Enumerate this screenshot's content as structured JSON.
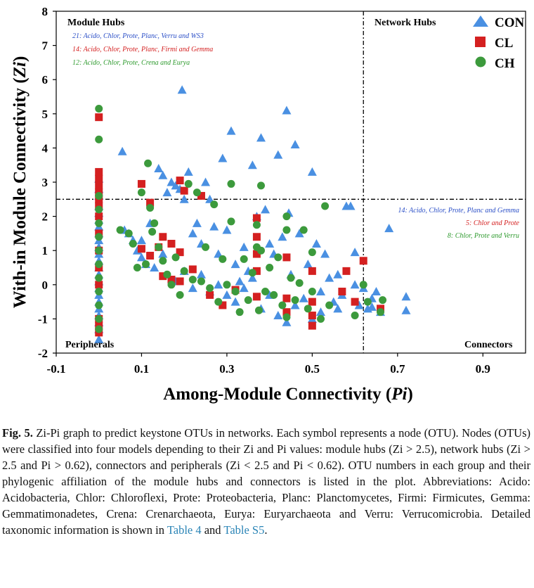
{
  "chart_data": {
    "type": "scatter",
    "xlabel_main": "Among-Module Connectivity (",
    "xlabel_var": "Pi",
    "xlabel_end": ")",
    "ylabel_main": "With-in Module Connectivity (",
    "ylabel_var": "Zi",
    "ylabel_end": ")",
    "xlim": [
      -0.1,
      1.0
    ],
    "ylim": [
      -2,
      8
    ],
    "xticks": [
      "-0.1",
      "0.1",
      "0.3",
      "0.5",
      "0.7",
      "0.9"
    ],
    "yticks": [
      "-2",
      "-1",
      "0",
      "1",
      "2",
      "3",
      "4",
      "5",
      "6",
      "7",
      "8"
    ],
    "thresholds": {
      "zi": 2.5,
      "pi": 0.62
    },
    "quadrants": {
      "module_hubs": "Module Hubs",
      "network_hubs": "Network Hubs",
      "peripherals": "Peripherals",
      "connectors": "Connectors"
    },
    "notes_module_hubs": [
      {
        "text": "21: Acido, Chlor, Prote, Planc, Verru and WS3",
        "color": "#2b4fc7"
      },
      {
        "text": "14: Acido, Chlor, Prote, Planc, Firmi and Gemma",
        "color": "#d42020"
      },
      {
        "text": "12: Acido, Chlor, Prote, Crena and Eurya",
        "color": "#2e9a2e"
      }
    ],
    "notes_connectors": [
      {
        "text": "14: Acido, Chlor, Prote, Planc and Gemma",
        "color": "#2b4fc7"
      },
      {
        "text": "5: Chlor and Prote",
        "color": "#d42020"
      },
      {
        "text": "8: Chlor, Prote and Verru",
        "color": "#2e9a2e"
      }
    ],
    "series": [
      {
        "name": "CON",
        "marker": "triangle",
        "color": "#4a90e2",
        "points": [
          [
            0,
            -1.6
          ],
          [
            0,
            -1.3
          ],
          [
            0,
            -1.1
          ],
          [
            0,
            -0.9
          ],
          [
            0,
            -0.7
          ],
          [
            0,
            -0.5
          ],
          [
            0,
            -0.3
          ],
          [
            0,
            -0.1
          ],
          [
            0,
            0.1
          ],
          [
            0,
            0.3
          ],
          [
            0,
            0.5
          ],
          [
            0,
            0.7
          ],
          [
            0,
            0.9
          ],
          [
            0,
            1.1
          ],
          [
            0,
            1.3
          ],
          [
            0,
            1.5
          ],
          [
            0,
            1.7
          ],
          [
            0,
            1.9
          ],
          [
            0,
            2.1
          ],
          [
            0,
            2.3
          ],
          [
            0,
            2.6
          ],
          [
            0,
            2.8
          ],
          [
            0,
            3.1
          ],
          [
            0.055,
            3.9
          ],
          [
            0.06,
            1.6
          ],
          [
            0.07,
            1.5
          ],
          [
            0.08,
            1.3
          ],
          [
            0.09,
            1.0
          ],
          [
            0.1,
            0.8
          ],
          [
            0.11,
            0.6
          ],
          [
            0.13,
            0.5
          ],
          [
            0.14,
            3.4
          ],
          [
            0.15,
            3.2
          ],
          [
            0.16,
            2.7
          ],
          [
            0.17,
            3.0
          ],
          [
            0.18,
            2.9
          ],
          [
            0.19,
            2.8
          ],
          [
            0.195,
            5.7
          ],
          [
            0.2,
            2.5
          ],
          [
            0.21,
            3.3
          ],
          [
            0.22,
            1.5
          ],
          [
            0.23,
            1.8
          ],
          [
            0.24,
            1.2
          ],
          [
            0.25,
            3.0
          ],
          [
            0.26,
            2.5
          ],
          [
            0.27,
            1.7
          ],
          [
            0.28,
            0.9
          ],
          [
            0.29,
            3.7
          ],
          [
            0.3,
            1.6
          ],
          [
            0.31,
            4.5
          ],
          [
            0.32,
            0.6
          ],
          [
            0.33,
            0.1
          ],
          [
            0.34,
            1.1
          ],
          [
            0.35,
            0.4
          ],
          [
            0.36,
            3.5
          ],
          [
            0.37,
            2.0
          ],
          [
            0.38,
            4.3
          ],
          [
            0.39,
            2.2
          ],
          [
            0.4,
            1.2
          ],
          [
            0.41,
            0.9
          ],
          [
            0.42,
            3.8
          ],
          [
            0.43,
            1.4
          ],
          [
            0.44,
            5.1
          ],
          [
            0.445,
            2.1
          ],
          [
            0.45,
            0.3
          ],
          [
            0.46,
            4.1
          ],
          [
            0.47,
            1.5
          ],
          [
            0.48,
            -0.4
          ],
          [
            0.49,
            0.6
          ],
          [
            0.5,
            3.3
          ],
          [
            0.51,
            1.2
          ],
          [
            0.52,
            -0.2
          ],
          [
            0.53,
            0.9
          ],
          [
            0.54,
            0.2
          ],
          [
            0.55,
            -0.5
          ],
          [
            0.56,
            0.3
          ],
          [
            0.57,
            -0.3
          ],
          [
            0.58,
            2.3
          ],
          [
            0.59,
            2.3
          ],
          [
            0.6,
            0.0
          ],
          [
            0.61,
            -0.6
          ],
          [
            0.62,
            -0.1
          ],
          [
            0.63,
            -0.7
          ],
          [
            0.64,
            -0.4
          ],
          [
            0.65,
            -0.2
          ],
          [
            0.66,
            -0.8
          ],
          [
            0.68,
            1.65
          ],
          [
            0.72,
            -0.35
          ],
          [
            0.72,
            -0.75
          ],
          [
            0.1,
            1.3
          ],
          [
            0.12,
            1.8
          ],
          [
            0.15,
            0.9
          ],
          [
            0.18,
            0.1
          ],
          [
            0.2,
            0.4
          ],
          [
            0.22,
            -0.1
          ],
          [
            0.24,
            0.3
          ],
          [
            0.26,
            -0.2
          ],
          [
            0.28,
            0.0
          ],
          [
            0.3,
            -0.3
          ],
          [
            0.32,
            -0.5
          ],
          [
            0.34,
            -0.1
          ],
          [
            0.36,
            0.2
          ],
          [
            0.38,
            -0.7
          ],
          [
            0.4,
            -0.3
          ],
          [
            0.42,
            -0.9
          ],
          [
            0.44,
            -1.1
          ],
          [
            0.46,
            -0.6
          ],
          [
            0.5,
            -1.0
          ],
          [
            0.52,
            -0.8
          ],
          [
            0.56,
            -0.7
          ],
          [
            0.6,
            0.95
          ],
          [
            0.64,
            -0.65
          ]
        ]
      },
      {
        "name": "CL",
        "marker": "square",
        "color": "#d42020",
        "points": [
          [
            0,
            -1.4
          ],
          [
            0,
            -1.2
          ],
          [
            0,
            -1.0
          ],
          [
            0,
            0.0
          ],
          [
            0,
            0.5
          ],
          [
            0,
            1.0
          ],
          [
            0,
            1.5
          ],
          [
            0,
            2.0
          ],
          [
            0,
            2.3
          ],
          [
            0,
            2.5
          ],
          [
            0,
            2.7
          ],
          [
            0,
            2.9
          ],
          [
            0,
            3.1
          ],
          [
            0,
            3.3
          ],
          [
            0,
            4.9
          ],
          [
            0.1,
            1.05
          ],
          [
            0.1,
            2.95
          ],
          [
            0.12,
            2.4
          ],
          [
            0.12,
            0.85
          ],
          [
            0.14,
            1.1
          ],
          [
            0.15,
            1.4
          ],
          [
            0.15,
            0.25
          ],
          [
            0.17,
            1.2
          ],
          [
            0.17,
            0.15
          ],
          [
            0.19,
            0.95
          ],
          [
            0.19,
            0.1
          ],
          [
            0.19,
            3.05
          ],
          [
            0.2,
            2.75
          ],
          [
            0.22,
            0.45
          ],
          [
            0.24,
            2.6
          ],
          [
            0.26,
            -0.3
          ],
          [
            0.29,
            -0.6
          ],
          [
            0.32,
            -0.15
          ],
          [
            0.37,
            1.95
          ],
          [
            0.37,
            1.4
          ],
          [
            0.37,
            0.9
          ],
          [
            0.37,
            0.4
          ],
          [
            0.37,
            -0.35
          ],
          [
            0.44,
            0.8
          ],
          [
            0.44,
            -0.4
          ],
          [
            0.44,
            -0.8
          ],
          [
            0.5,
            0.4
          ],
          [
            0.5,
            -0.5
          ],
          [
            0.5,
            -0.9
          ],
          [
            0.5,
            -1.2
          ],
          [
            0.57,
            -0.2
          ],
          [
            0.58,
            0.4
          ],
          [
            0.6,
            -0.5
          ],
          [
            0.62,
            0.7
          ],
          [
            0.66,
            -0.7
          ]
        ]
      },
      {
        "name": "CH",
        "marker": "circle",
        "color": "#3c9a3c",
        "points": [
          [
            0,
            -1.3
          ],
          [
            0,
            -1.0
          ],
          [
            0,
            -0.6
          ],
          [
            0,
            -0.2
          ],
          [
            0,
            0.2
          ],
          [
            0,
            0.6
          ],
          [
            0,
            1.0
          ],
          [
            0,
            1.4
          ],
          [
            0,
            1.8
          ],
          [
            0,
            2.2
          ],
          [
            0,
            2.6
          ],
          [
            0,
            4.25
          ],
          [
            0,
            5.15
          ],
          [
            0.05,
            1.6
          ],
          [
            0.07,
            1.5
          ],
          [
            0.08,
            1.2
          ],
          [
            0.09,
            0.5
          ],
          [
            0.1,
            2.7
          ],
          [
            0.11,
            0.6
          ],
          [
            0.115,
            3.55
          ],
          [
            0.12,
            2.25
          ],
          [
            0.125,
            1.55
          ],
          [
            0.13,
            1.8
          ],
          [
            0.14,
            1.1
          ],
          [
            0.15,
            0.7
          ],
          [
            0.16,
            0.3
          ],
          [
            0.17,
            0.0
          ],
          [
            0.18,
            0.8
          ],
          [
            0.19,
            -0.3
          ],
          [
            0.2,
            0.4
          ],
          [
            0.21,
            2.95
          ],
          [
            0.22,
            0.15
          ],
          [
            0.23,
            2.7
          ],
          [
            0.24,
            0.1
          ],
          [
            0.25,
            1.1
          ],
          [
            0.26,
            -0.1
          ],
          [
            0.27,
            2.35
          ],
          [
            0.28,
            -0.5
          ],
          [
            0.29,
            0.75
          ],
          [
            0.3,
            0.0
          ],
          [
            0.31,
            2.95
          ],
          [
            0.31,
            1.85
          ],
          [
            0.32,
            -0.2
          ],
          [
            0.33,
            -0.8
          ],
          [
            0.34,
            0.75
          ],
          [
            0.35,
            -0.45
          ],
          [
            0.36,
            0.35
          ],
          [
            0.37,
            1.75
          ],
          [
            0.37,
            1.1
          ],
          [
            0.375,
            -0.75
          ],
          [
            0.38,
            2.9
          ],
          [
            0.38,
            1.0
          ],
          [
            0.39,
            -0.2
          ],
          [
            0.4,
            0.5
          ],
          [
            0.41,
            -0.3
          ],
          [
            0.42,
            0.8
          ],
          [
            0.43,
            -0.6
          ],
          [
            0.44,
            2.0
          ],
          [
            0.44,
            1.6
          ],
          [
            0.44,
            -0.95
          ],
          [
            0.45,
            0.2
          ],
          [
            0.46,
            -0.45
          ],
          [
            0.47,
            0.05
          ],
          [
            0.48,
            1.6
          ],
          [
            0.49,
            -0.7
          ],
          [
            0.5,
            0.95
          ],
          [
            0.5,
            -0.2
          ],
          [
            0.52,
            -1.0
          ],
          [
            0.53,
            2.3
          ],
          [
            0.54,
            -0.6
          ],
          [
            0.6,
            -0.9
          ],
          [
            0.62,
            0.0
          ],
          [
            0.63,
            -0.5
          ],
          [
            0.66,
            -0.8
          ],
          [
            0.665,
            -0.45
          ]
        ]
      }
    ]
  },
  "caption": {
    "fig_label": "Fig. 5.",
    "text_before": "Zi-Pi graph to predict keystone OTUs in networks. Each symbol represents a node (OTU). Nodes (OTUs) were classified into four models depending to their Zi and Pi values: module hubs (Zi > 2.5), network hubs (Zi > 2.5 and Pi > 0.62), connectors and peripherals (Zi < 2.5 and Pi < 0.62). OTU numbers in each group and their phylogenic affiliation of the module hubs and connectors is listed in the plot. Abbreviations: Acido: Acidobacteria, Chlor: Chloroflexi, Prote: Proteobacteria, Planc: Planctomycetes, Firmi: Firmicutes, Gemma: Gemmatimonadetes, Crena: Crenarchaeota, Eurya: Euryarchaeota and Verru: Verrucomicrobia. Detailed taxonomic information is shown in",
    "link1": "Table 4",
    "mid": "and",
    "link2": "Table S5",
    "end": "."
  }
}
